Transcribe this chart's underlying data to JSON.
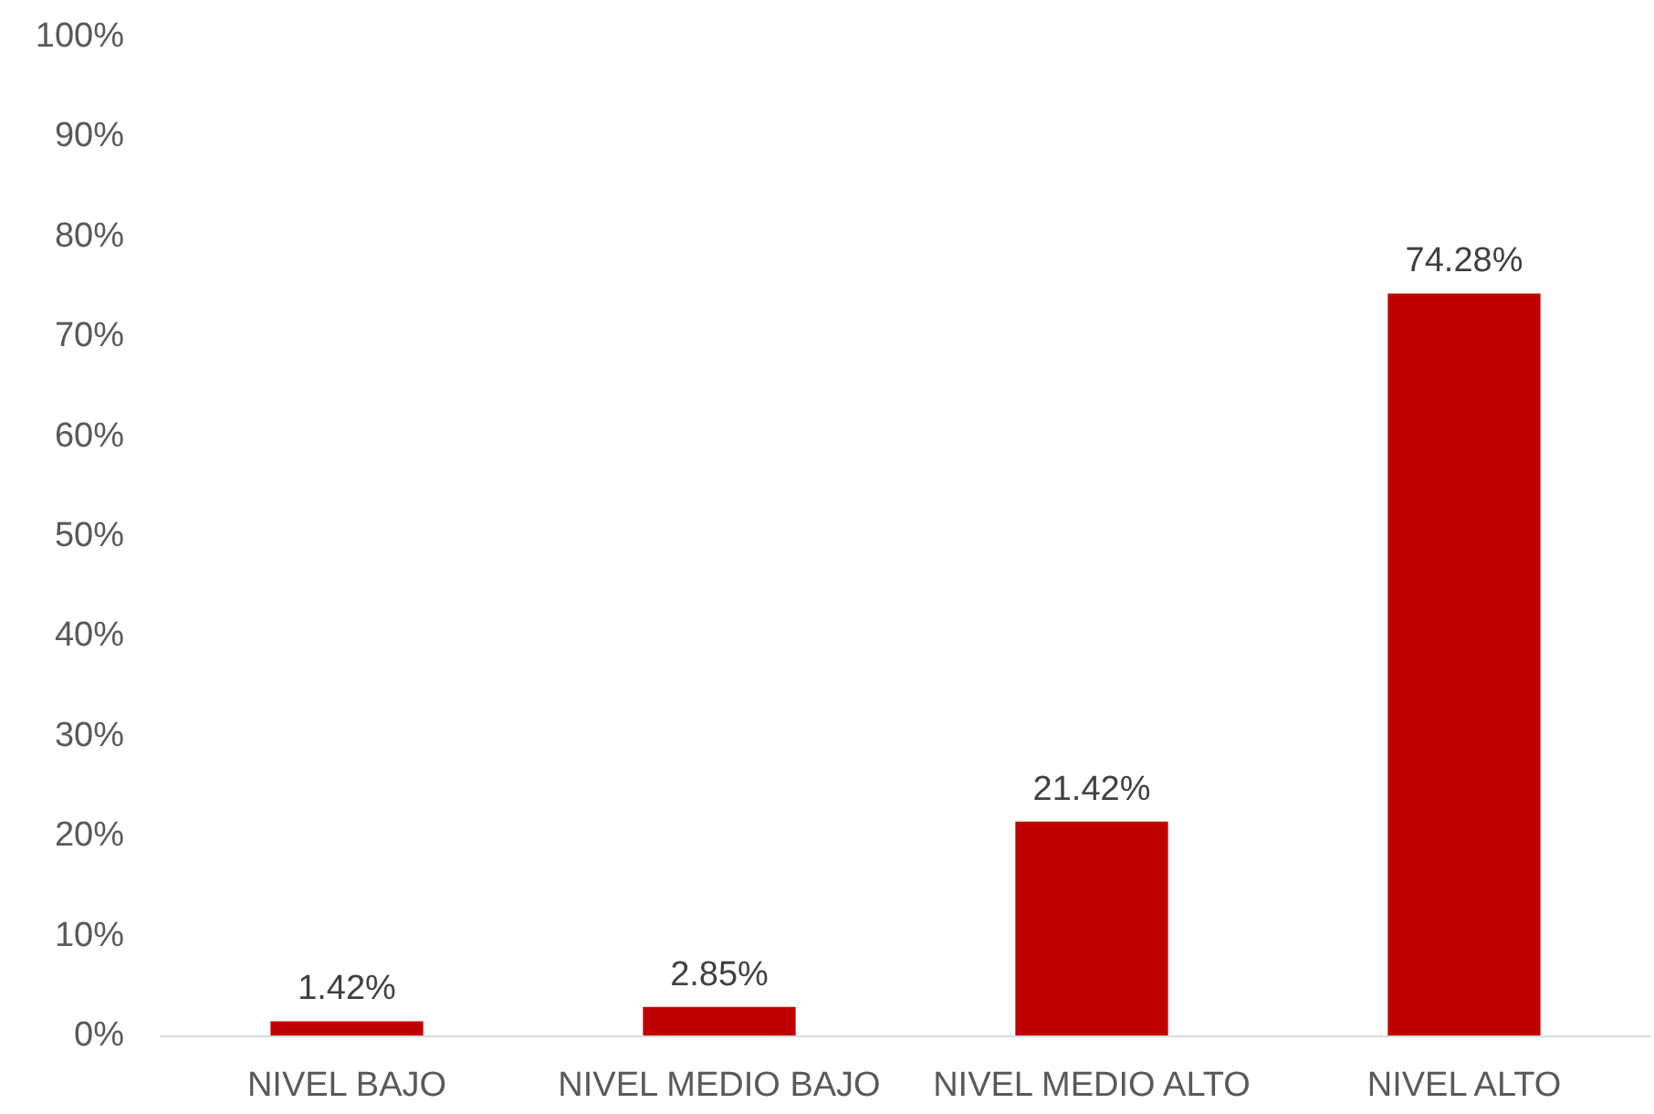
{
  "chart_data": {
    "type": "bar",
    "categories": [
      "NIVEL BAJO",
      "NIVEL MEDIO BAJO",
      "NIVEL MEDIO ALTO",
      "NIVEL ALTO"
    ],
    "values": [
      1.42,
      2.85,
      21.42,
      74.28
    ],
    "value_labels": [
      "1.42%",
      "2.85%",
      "21.42%",
      "74.28%"
    ],
    "color": "#c00000",
    "ylim": [
      0,
      100
    ],
    "yticks": [
      {
        "value": 0,
        "label": "0%"
      },
      {
        "value": 10,
        "label": "10%"
      },
      {
        "value": 20,
        "label": "20%"
      },
      {
        "value": 30,
        "label": "30%"
      },
      {
        "value": 40,
        "label": "40%"
      },
      {
        "value": 50,
        "label": "50%"
      },
      {
        "value": 60,
        "label": "60%"
      },
      {
        "value": 70,
        "label": "70%"
      },
      {
        "value": 80,
        "label": "80%"
      },
      {
        "value": 90,
        "label": "90%"
      },
      {
        "value": 100,
        "label": "100%"
      }
    ],
    "grid": false
  }
}
